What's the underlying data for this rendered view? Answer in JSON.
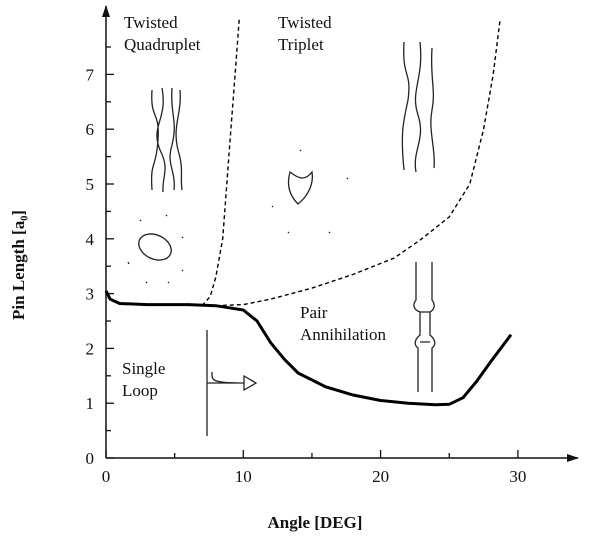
{
  "chart_data": {
    "type": "line",
    "xlabel": "Angle [DEG]",
    "ylabel": "Pin Length [a₀]",
    "xlim": [
      0,
      34
    ],
    "ylim": [
      0,
      8.2
    ],
    "xticks": [
      0,
      10,
      20,
      30
    ],
    "yticks": [
      0,
      1,
      2,
      3,
      4,
      5,
      6,
      7
    ],
    "xminorticks": [
      5,
      15,
      25
    ],
    "yminorticks": [
      0.5,
      1.5,
      2.5,
      3.5,
      4.5,
      5.5,
      6.5,
      7.5
    ],
    "series": [
      {
        "style": "solid",
        "color": "#000000",
        "x": [
          0,
          0.3,
          1,
          3,
          6,
          8,
          10,
          11,
          12,
          13,
          14,
          16,
          18,
          20,
          22,
          24,
          25,
          26,
          27,
          28,
          29.5
        ],
        "values": [
          3.05,
          2.9,
          2.82,
          2.8,
          2.8,
          2.78,
          2.7,
          2.5,
          2.1,
          1.8,
          1.55,
          1.3,
          1.15,
          1.05,
          1.0,
          0.97,
          0.98,
          1.1,
          1.4,
          1.75,
          2.25
        ]
      },
      {
        "style": "dashed",
        "color": "#000000",
        "x": [
          7,
          7.6,
          8,
          8.5,
          8.8,
          9.1,
          9.4,
          9.7
        ],
        "values": [
          2.78,
          2.95,
          3.3,
          4.0,
          5.0,
          6.0,
          7.0,
          8.0
        ]
      },
      {
        "style": "dashed",
        "color": "#000000",
        "x": [
          8,
          10,
          12,
          15,
          18,
          21,
          23,
          25,
          26.5,
          27.5,
          28.2,
          28.7
        ],
        "values": [
          2.78,
          2.8,
          2.9,
          3.1,
          3.35,
          3.65,
          4.0,
          4.4,
          5.0,
          6.0,
          7.0,
          8.0
        ]
      }
    ],
    "annotations": [
      [
        "Twisted",
        "Quadruplet"
      ],
      [
        "Twisted",
        "Triplet"
      ],
      [
        "Pair",
        "Annihilation"
      ],
      [
        "Single",
        "Loop"
      ]
    ]
  }
}
